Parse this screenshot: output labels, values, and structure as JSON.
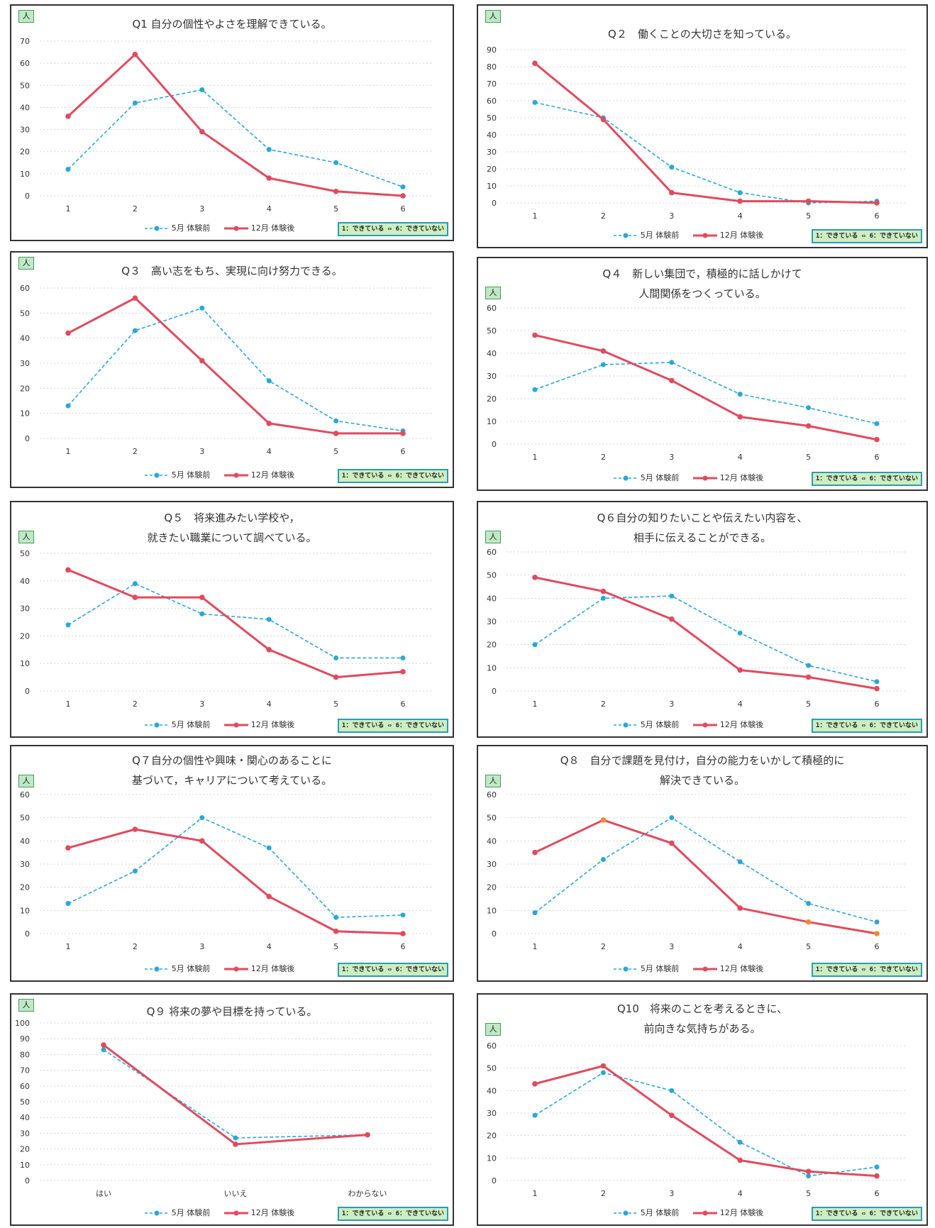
{
  "legend": {
    "may_label": "5月 体験前",
    "dec_label": "12月 体験後",
    "scale_note": "1：できている ⇔ 6：できていない"
  },
  "unit_label": "人",
  "colors": {
    "may": "#2ba6d9",
    "dec": "#e14a5e",
    "dec_marker_alt": "#f08a32",
    "grid": "#cfd8dc"
  },
  "chart_data": [
    {
      "type": "line",
      "title": [
        "Q1 自分の個性やよさを理解できている。"
      ],
      "xlabel": "",
      "ylabel": "人",
      "categories": [
        "1",
        "2",
        "3",
        "4",
        "5",
        "6"
      ],
      "ylim": [
        0,
        70
      ],
      "yticks": [
        0,
        10,
        20,
        30,
        40,
        50,
        60,
        70
      ],
      "series": [
        {
          "name": "5月 体験前",
          "values": [
            12,
            42,
            48,
            21,
            15,
            4
          ]
        },
        {
          "name": "12月 体験後",
          "values": [
            36,
            64,
            29,
            8,
            2,
            0
          ]
        }
      ]
    },
    {
      "type": "line",
      "title": [
        "Q２　働くことの大切さを知っている。"
      ],
      "xlabel": "",
      "ylabel": "人",
      "categories": [
        "1",
        "2",
        "3",
        "4",
        "5",
        "6"
      ],
      "ylim": [
        0,
        90
      ],
      "yticks": [
        0,
        10,
        20,
        30,
        40,
        50,
        60,
        70,
        80,
        90
      ],
      "series": [
        {
          "name": "5月 体験前",
          "values": [
            59,
            50,
            21,
            6,
            0,
            1
          ]
        },
        {
          "name": "12月 体験後",
          "values": [
            82,
            49,
            6,
            1,
            1,
            0
          ]
        }
      ]
    },
    {
      "type": "line",
      "title": [
        "Q３　高い志をもち、実現に向け努力できる。"
      ],
      "xlabel": "",
      "ylabel": "人",
      "categories": [
        "1",
        "2",
        "3",
        "4",
        "5",
        "6"
      ],
      "ylim": [
        0,
        60
      ],
      "yticks": [
        0,
        10,
        20,
        30,
        40,
        50,
        60
      ],
      "series": [
        {
          "name": "5月 体験前",
          "values": [
            13,
            43,
            52,
            23,
            7,
            3
          ]
        },
        {
          "name": "12月 体験後",
          "values": [
            42,
            56,
            31,
            6,
            2,
            2
          ]
        }
      ]
    },
    {
      "type": "line",
      "title": [
        "Q４　新しい集団で，積極的に話しかけて",
        "人間関係をつくっている。"
      ],
      "xlabel": "",
      "ylabel": "人",
      "categories": [
        "1",
        "2",
        "3",
        "4",
        "5",
        "6"
      ],
      "ylim": [
        0,
        60
      ],
      "yticks": [
        0,
        10,
        20,
        30,
        40,
        50,
        60
      ],
      "series": [
        {
          "name": "5月 体験前",
          "values": [
            24,
            35,
            36,
            22,
            16,
            9
          ]
        },
        {
          "name": "12月 体験後",
          "values": [
            48,
            41,
            28,
            12,
            8,
            2
          ]
        }
      ]
    },
    {
      "type": "line",
      "title": [
        "Q５　将来進みたい学校や，",
        "就きたい職業について調べている。"
      ],
      "xlabel": "",
      "ylabel": "人",
      "categories": [
        "1",
        "2",
        "3",
        "4",
        "5",
        "6"
      ],
      "ylim": [
        0,
        50
      ],
      "yticks": [
        0,
        10,
        20,
        30,
        40,
        50
      ],
      "series": [
        {
          "name": "5月 体験前",
          "values": [
            24,
            39,
            28,
            26,
            12,
            12
          ]
        },
        {
          "name": "12月 体験後",
          "values": [
            44,
            34,
            34,
            15,
            5,
            7
          ]
        }
      ]
    },
    {
      "type": "line",
      "title": [
        "Q６自分の知りたいことや伝えたい内容を、",
        "相手に伝えることができる。"
      ],
      "xlabel": "",
      "ylabel": "人",
      "categories": [
        "1",
        "2",
        "3",
        "4",
        "5",
        "6"
      ],
      "ylim": [
        0,
        60
      ],
      "yticks": [
        0,
        10,
        20,
        30,
        40,
        50,
        60
      ],
      "series": [
        {
          "name": "5月 体験前",
          "values": [
            20,
            40,
            41,
            25,
            11,
            4
          ]
        },
        {
          "name": "12月 体験後",
          "values": [
            49,
            43,
            31,
            9,
            6,
            1
          ]
        }
      ]
    },
    {
      "type": "line",
      "title": [
        "Q７自分の個性や興味・関心のあることに",
        "基づいて，キャリアについて考えている。"
      ],
      "xlabel": "",
      "ylabel": "人",
      "categories": [
        "1",
        "2",
        "3",
        "4",
        "5",
        "6"
      ],
      "ylim": [
        0,
        60
      ],
      "yticks": [
        0,
        10,
        20,
        30,
        40,
        50,
        60
      ],
      "series": [
        {
          "name": "5月 体験前",
          "values": [
            13,
            27,
            50,
            37,
            7,
            8
          ]
        },
        {
          "name": "12月 体験後",
          "values": [
            37,
            45,
            40,
            16,
            1,
            0
          ]
        }
      ]
    },
    {
      "type": "line",
      "title": [
        "Q８　自分で課題を見付け，自分の能力をいかして積極的に",
        "解決できている。"
      ],
      "xlabel": "",
      "ylabel": "人",
      "categories": [
        "1",
        "2",
        "3",
        "4",
        "5",
        "6"
      ],
      "ylim": [
        0,
        60
      ],
      "yticks": [
        0,
        10,
        20,
        30,
        40,
        50,
        60
      ],
      "series": [
        {
          "name": "5月 体験前",
          "values": [
            9,
            32,
            50,
            31,
            13,
            5
          ]
        },
        {
          "name": "12月 体験後",
          "values": [
            35,
            49,
            39,
            11,
            5,
            0
          ]
        }
      ]
    },
    {
      "type": "line",
      "title": [
        "Q９ 将来の夢や目標を持っている。"
      ],
      "xlabel": "",
      "ylabel": "人",
      "categories": [
        "はい",
        "いいえ",
        "わからない"
      ],
      "ylim": [
        0,
        100
      ],
      "yticks": [
        0,
        10,
        20,
        30,
        40,
        50,
        60,
        70,
        80,
        90,
        100
      ],
      "series": [
        {
          "name": "5月 体験前",
          "values": [
            83,
            27,
            29
          ]
        },
        {
          "name": "12月 体験後",
          "values": [
            86,
            23,
            29
          ]
        }
      ]
    },
    {
      "type": "line",
      "title": [
        "Q10　将来のことを考えるときに、",
        "前向きな気持ちがある。"
      ],
      "xlabel": "",
      "ylabel": "人",
      "categories": [
        "1",
        "2",
        "3",
        "4",
        "5",
        "6"
      ],
      "ylim": [
        0,
        60
      ],
      "yticks": [
        0,
        10,
        20,
        30,
        40,
        50,
        60
      ],
      "series": [
        {
          "name": "5月 体験前",
          "values": [
            29,
            48,
            40,
            17,
            2,
            6
          ]
        },
        {
          "name": "12月 体験後",
          "values": [
            43,
            51,
            29,
            9,
            4,
            2
          ]
        }
      ]
    }
  ]
}
